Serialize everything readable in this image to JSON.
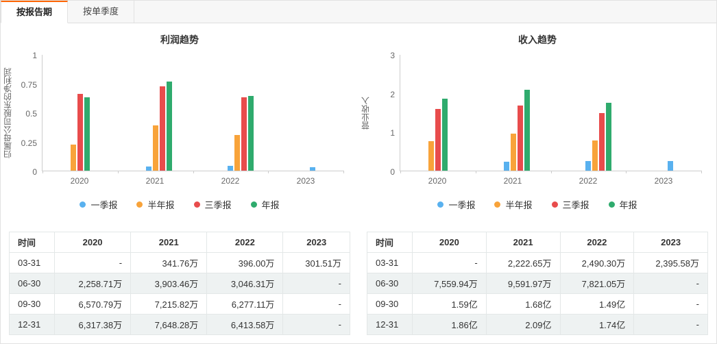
{
  "colors": {
    "accent": "#ff6600",
    "series": [
      "#59b1ef",
      "#f8a33a",
      "#e84c4c",
      "#2fab6d"
    ],
    "row_stripe": "#eef2f2"
  },
  "tabs": [
    {
      "label": "按报告期",
      "active": true
    },
    {
      "label": "按单季度",
      "active": false
    }
  ],
  "chart_data": [
    {
      "type": "bar",
      "title": "利润趋势",
      "ylabel": "归属母公司股东的净利润",
      "categories": [
        "2020",
        "2021",
        "2022",
        "2023"
      ],
      "ylim": [
        0,
        1
      ],
      "yticks": [
        0,
        0.25,
        0.5,
        0.75,
        1
      ],
      "grid": false,
      "legend_position": "bottom",
      "series": [
        {
          "name": "一季报",
          "values": [
            null,
            0.0342,
            0.0396,
            0.0302
          ]
        },
        {
          "name": "半年报",
          "values": [
            0.2259,
            0.3903,
            0.3046,
            null
          ]
        },
        {
          "name": "三季报",
          "values": [
            0.6571,
            0.7216,
            0.6277,
            null
          ]
        },
        {
          "name": "年报",
          "values": [
            0.6317,
            0.7648,
            0.6414,
            null
          ]
        }
      ]
    },
    {
      "type": "bar",
      "title": "收入趋势",
      "ylabel": "营业收入",
      "categories": [
        "2020",
        "2021",
        "2022",
        "2023"
      ],
      "ylim": [
        0,
        3
      ],
      "yticks": [
        0,
        1,
        2,
        3
      ],
      "grid": false,
      "legend_position": "bottom",
      "series": [
        {
          "name": "一季报",
          "values": [
            null,
            0.2223,
            0.249,
            0.2396
          ]
        },
        {
          "name": "半年报",
          "values": [
            0.756,
            0.9592,
            0.7821,
            null
          ]
        },
        {
          "name": "三季报",
          "values": [
            1.59,
            1.68,
            1.49,
            null
          ]
        },
        {
          "name": "年报",
          "values": [
            1.86,
            2.09,
            1.74,
            null
          ]
        }
      ]
    }
  ],
  "tables": [
    {
      "headers": [
        "时间",
        "2020",
        "2021",
        "2022",
        "2023"
      ],
      "rows": [
        [
          "03-31",
          "-",
          "341.76万",
          "396.00万",
          "301.51万"
        ],
        [
          "06-30",
          "2,258.71万",
          "3,903.46万",
          "3,046.31万",
          "-"
        ],
        [
          "09-30",
          "6,570.79万",
          "7,215.82万",
          "6,277.11万",
          "-"
        ],
        [
          "12-31",
          "6,317.38万",
          "7,648.28万",
          "6,413.58万",
          "-"
        ]
      ]
    },
    {
      "headers": [
        "时间",
        "2020",
        "2021",
        "2022",
        "2023"
      ],
      "rows": [
        [
          "03-31",
          "-",
          "2,222.65万",
          "2,490.30万",
          "2,395.58万"
        ],
        [
          "06-30",
          "7,559.94万",
          "9,591.97万",
          "7,821.05万",
          "-"
        ],
        [
          "09-30",
          "1.59亿",
          "1.68亿",
          "1.49亿",
          "-"
        ],
        [
          "12-31",
          "1.86亿",
          "2.09亿",
          "1.74亿",
          "-"
        ]
      ]
    }
  ]
}
